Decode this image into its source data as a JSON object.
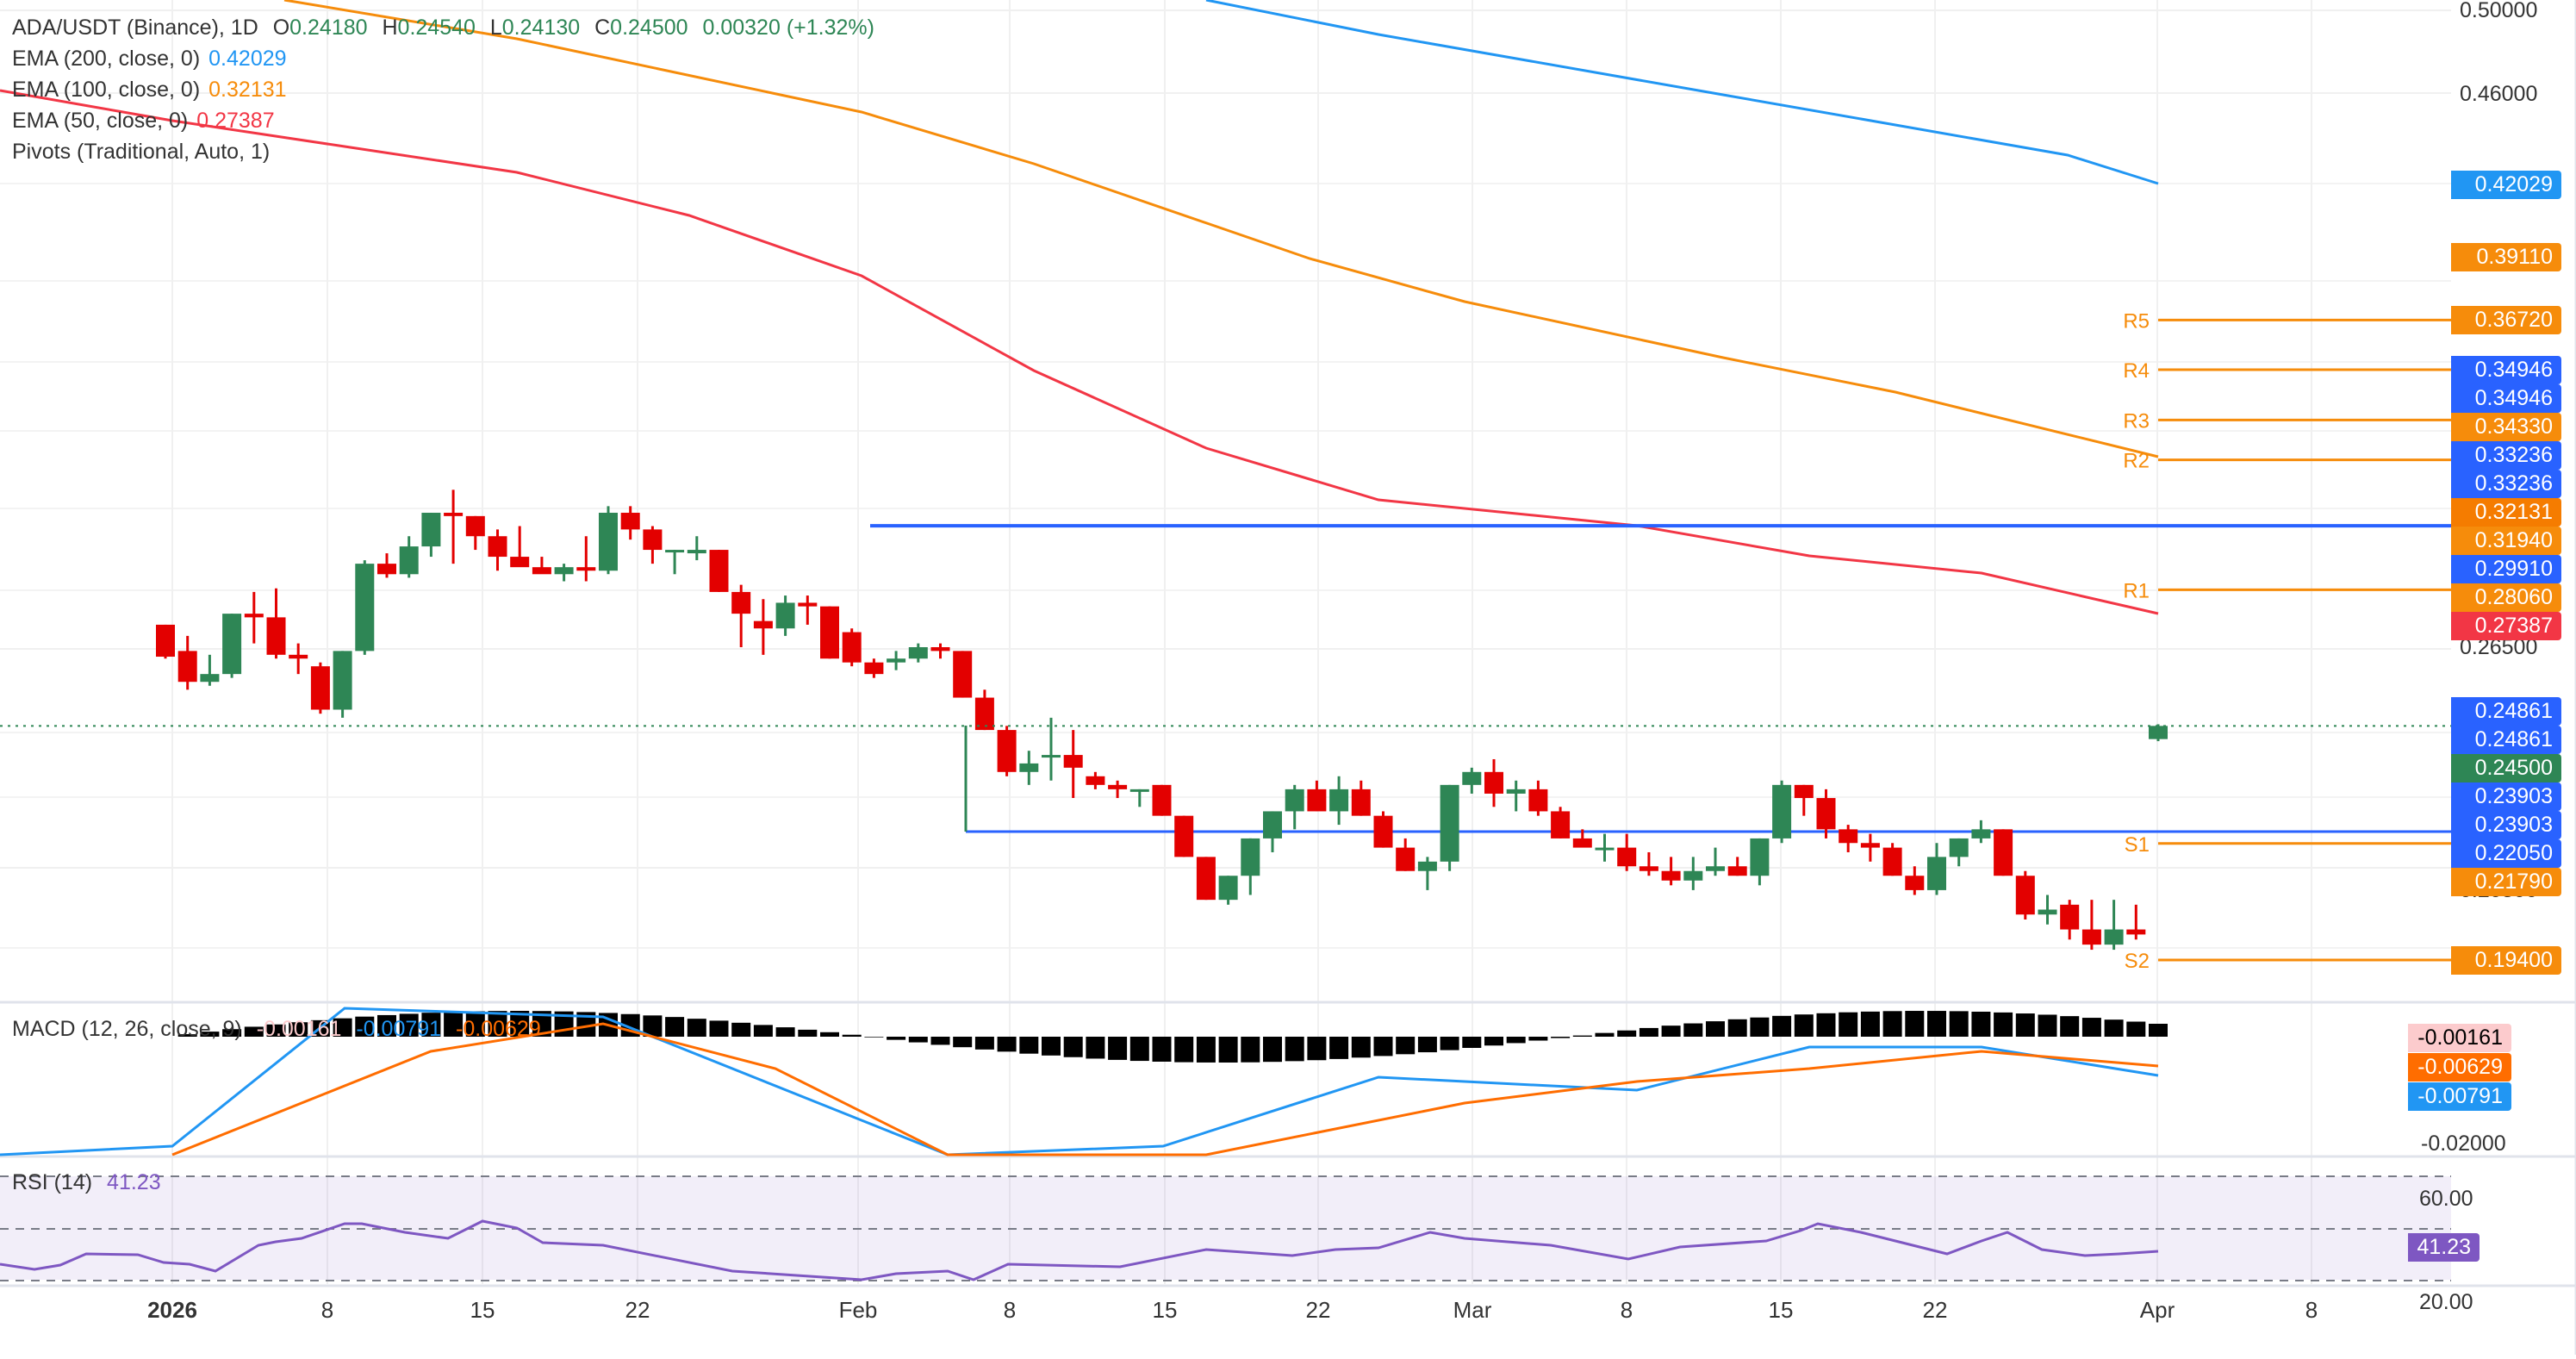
{
  "header": {
    "symbol": "ADA/USDT (Binance), 1D",
    "open_label": "O",
    "open": "0.24180",
    "high_label": "H",
    "high": "0.24540",
    "low_label": "L",
    "low": "0.24130",
    "close_label": "C",
    "close": "0.24500",
    "change": "0.00320 (+1.32%)"
  },
  "indicators": {
    "ema200": {
      "label": "EMA (200, close, 0)",
      "value": "0.42029",
      "color": "#2196f3"
    },
    "ema100": {
      "label": "EMA (100, close, 0)",
      "value": "0.32131",
      "color": "#f68c0b"
    },
    "ema50": {
      "label": "EMA (50, close, 0)",
      "value": "0.27387",
      "color": "#f23645"
    },
    "pivots": {
      "label": "Pivots (Traditional, Auto, 1)"
    }
  },
  "macd": {
    "label": "MACD (12, 26, close, 9)",
    "hist": "-0.00161",
    "macd": "-0.00791",
    "signal": "-0.00629"
  },
  "rsi": {
    "label": "RSI (14)",
    "value": "41.23"
  },
  "colors": {
    "up": "#2e8655",
    "down": "#e30000",
    "pivot": "#f68c0b",
    "level": "#2962ff",
    "ema200": "#2196f3",
    "ema100": "#f68c0b",
    "ema50": "#f23645",
    "macd": "#2196f3",
    "signal": "#ff6d00",
    "rsi": "#7e57c2"
  },
  "price_axis": {
    "ticks": [
      "0.50000",
      "0.46000",
      "0.26500",
      "0.20800"
    ],
    "badges": [
      {
        "value": "0.42029",
        "color": "#2196f3"
      },
      {
        "value": "0.39110",
        "color": "#f68c0b"
      },
      {
        "value": "0.36720",
        "color": "#f68c0b"
      },
      {
        "value": "0.34946",
        "color": "#2962ff"
      },
      {
        "value": "0.34946",
        "color": "#2962ff"
      },
      {
        "value": "0.34330",
        "color": "#f68c0b"
      },
      {
        "value": "0.33236",
        "color": "#2962ff"
      },
      {
        "value": "0.33236",
        "color": "#2962ff"
      },
      {
        "value": "0.32131",
        "color": "#f57c00"
      },
      {
        "value": "0.31940",
        "color": "#f68c0b"
      },
      {
        "value": "0.29910",
        "color": "#2962ff"
      },
      {
        "value": "0.28060",
        "color": "#f68c0b"
      },
      {
        "value": "0.27387",
        "color": "#f23645"
      },
      {
        "value": "0.24861",
        "color": "#2962ff"
      },
      {
        "value": "0.24861",
        "color": "#2962ff"
      },
      {
        "value": "0.24500",
        "color": "#2e8655"
      },
      {
        "value": "0.23903",
        "color": "#2962ff"
      },
      {
        "value": "0.23903",
        "color": "#2962ff"
      },
      {
        "value": "0.22050",
        "color": "#2962ff"
      },
      {
        "value": "0.21790",
        "color": "#f68c0b"
      },
      {
        "value": "0.19400",
        "color": "#f68c0b"
      }
    ]
  },
  "pivots": [
    {
      "name": "R5",
      "value": 0.3672
    },
    {
      "name": "R4",
      "value": 0.34946
    },
    {
      "name": "R3",
      "value": 0.33236
    },
    {
      "name": "R2",
      "value": 0.3194
    },
    {
      "name": "R1",
      "value": 0.2806
    },
    {
      "name": "S1",
      "value": 0.2179
    },
    {
      "name": "S2",
      "value": 0.194
    }
  ],
  "macd_axis": {
    "ticks": [
      "0.00000",
      "-0.02000"
    ],
    "badges": [
      {
        "value": "-0.00161",
        "color": "#fccbcd",
        "text": "#000"
      },
      {
        "value": "-0.00629",
        "color": "#ff6d00",
        "text": "#fff"
      },
      {
        "value": "-0.00791",
        "color": "#2196f3",
        "text": "#fff"
      }
    ]
  },
  "rsi_axis": {
    "ticks": [
      "60.00",
      "20.00"
    ],
    "badge": {
      "value": "41.23",
      "color": "#7e57c2"
    }
  },
  "x_axis": [
    {
      "label": "2026",
      "x": 200,
      "bold": true
    },
    {
      "label": "8",
      "x": 380
    },
    {
      "label": "15",
      "x": 560
    },
    {
      "label": "22",
      "x": 740
    },
    {
      "label": "Feb",
      "x": 996
    },
    {
      "label": "8",
      "x": 1172
    },
    {
      "label": "15",
      "x": 1352
    },
    {
      "label": "22",
      "x": 1530
    },
    {
      "label": "Mar",
      "x": 1709
    },
    {
      "label": "8",
      "x": 1888
    },
    {
      "label": "15",
      "x": 2067
    },
    {
      "label": "22",
      "x": 2246
    },
    {
      "label": "Apr",
      "x": 2504
    },
    {
      "label": "8",
      "x": 2683
    }
  ],
  "chart_data": {
    "type": "candlestick",
    "title": "ADA/USDT (Binance), 1D",
    "scale": "log",
    "ylim": [
      0.18,
      0.5
    ],
    "x_start": "2025-12-24",
    "x_end": "2026-04-01",
    "ohlc": [
      [
        0.271,
        0.271,
        0.262,
        0.2625
      ],
      [
        0.264,
        0.268,
        0.254,
        0.256
      ],
      [
        0.256,
        0.263,
        0.255,
        0.258
      ],
      [
        0.258,
        0.274,
        0.257,
        0.274
      ],
      [
        0.274,
        0.28,
        0.266,
        0.273
      ],
      [
        0.273,
        0.281,
        0.262,
        0.263
      ],
      [
        0.263,
        0.266,
        0.258,
        0.262
      ],
      [
        0.26,
        0.261,
        0.248,
        0.249
      ],
      [
        0.249,
        0.264,
        0.247,
        0.264
      ],
      [
        0.264,
        0.289,
        0.263,
        0.288
      ],
      [
        0.288,
        0.291,
        0.284,
        0.285
      ],
      [
        0.285,
        0.296,
        0.284,
        0.293
      ],
      [
        0.293,
        0.303,
        0.29,
        0.303
      ],
      [
        0.303,
        0.31,
        0.288,
        0.302
      ],
      [
        0.302,
        0.302,
        0.292,
        0.296
      ],
      [
        0.296,
        0.298,
        0.286,
        0.29
      ],
      [
        0.29,
        0.299,
        0.288,
        0.287
      ],
      [
        0.287,
        0.29,
        0.286,
        0.285
      ],
      [
        0.285,
        0.288,
        0.283,
        0.287
      ],
      [
        0.287,
        0.296,
        0.283,
        0.286
      ],
      [
        0.286,
        0.305,
        0.285,
        0.303
      ],
      [
        0.303,
        0.305,
        0.295,
        0.298
      ],
      [
        0.298,
        0.299,
        0.288,
        0.292
      ],
      [
        0.292,
        0.292,
        0.285,
        0.292
      ],
      [
        0.291,
        0.296,
        0.289,
        0.292
      ],
      [
        0.292,
        0.292,
        0.28,
        0.28
      ],
      [
        0.28,
        0.282,
        0.265,
        0.274
      ],
      [
        0.272,
        0.278,
        0.263,
        0.27
      ],
      [
        0.27,
        0.279,
        0.268,
        0.277
      ],
      [
        0.277,
        0.279,
        0.271,
        0.276
      ],
      [
        0.276,
        0.276,
        0.262,
        0.262
      ],
      [
        0.269,
        0.27,
        0.26,
        0.261
      ],
      [
        0.261,
        0.262,
        0.257,
        0.258
      ],
      [
        0.261,
        0.264,
        0.259,
        0.262
      ],
      [
        0.262,
        0.266,
        0.261,
        0.265
      ],
      [
        0.265,
        0.266,
        0.262,
        0.264
      ],
      [
        0.264,
        0.264,
        0.252,
        0.252
      ],
      [
        0.252,
        0.254,
        0.244,
        0.244
      ],
      [
        0.244,
        0.245,
        0.233,
        0.234
      ],
      [
        0.234,
        0.239,
        0.231,
        0.236
      ],
      [
        0.238,
        0.247,
        0.232,
        0.238
      ],
      [
        0.238,
        0.244,
        0.228,
        0.235
      ],
      [
        0.233,
        0.234,
        0.23,
        0.231
      ],
      [
        0.231,
        0.232,
        0.228,
        0.23
      ],
      [
        0.23,
        0.23,
        0.226,
        0.23
      ],
      [
        0.231,
        0.231,
        0.224,
        0.224
      ],
      [
        0.224,
        0.224,
        0.215,
        0.215
      ],
      [
        0.215,
        0.215,
        0.206,
        0.206
      ],
      [
        0.206,
        0.211,
        0.205,
        0.211
      ],
      [
        0.211,
        0.219,
        0.207,
        0.219
      ],
      [
        0.219,
        0.225,
        0.216,
        0.225
      ],
      [
        0.225,
        0.231,
        0.221,
        0.23
      ],
      [
        0.23,
        0.232,
        0.225,
        0.225
      ],
      [
        0.225,
        0.233,
        0.222,
        0.23
      ],
      [
        0.23,
        0.232,
        0.224,
        0.224
      ],
      [
        0.224,
        0.225,
        0.217,
        0.217
      ],
      [
        0.217,
        0.219,
        0.212,
        0.212
      ],
      [
        0.212,
        0.215,
        0.208,
        0.214
      ],
      [
        0.214,
        0.231,
        0.212,
        0.231
      ],
      [
        0.231,
        0.235,
        0.229,
        0.234
      ],
      [
        0.234,
        0.237,
        0.226,
        0.229
      ],
      [
        0.229,
        0.232,
        0.225,
        0.23
      ],
      [
        0.23,
        0.232,
        0.224,
        0.225
      ],
      [
        0.225,
        0.226,
        0.219,
        0.219
      ],
      [
        0.219,
        0.221,
        0.218,
        0.217
      ],
      [
        0.217,
        0.22,
        0.214,
        0.217
      ],
      [
        0.217,
        0.22,
        0.212,
        0.213
      ],
      [
        0.213,
        0.216,
        0.211,
        0.212
      ],
      [
        0.212,
        0.215,
        0.209,
        0.21
      ],
      [
        0.21,
        0.215,
        0.208,
        0.212
      ],
      [
        0.212,
        0.217,
        0.211,
        0.213
      ],
      [
        0.213,
        0.215,
        0.211,
        0.211
      ],
      [
        0.211,
        0.219,
        0.209,
        0.219
      ],
      [
        0.219,
        0.232,
        0.218,
        0.231
      ],
      [
        0.231,
        0.231,
        0.224,
        0.228
      ],
      [
        0.228,
        0.23,
        0.219,
        0.221
      ],
      [
        0.221,
        0.222,
        0.216,
        0.218
      ],
      [
        0.218,
        0.22,
        0.214,
        0.217
      ],
      [
        0.217,
        0.218,
        0.211,
        0.211
      ],
      [
        0.211,
        0.213,
        0.207,
        0.208
      ],
      [
        0.208,
        0.218,
        0.207,
        0.215
      ],
      [
        0.215,
        0.219,
        0.213,
        0.219
      ],
      [
        0.219,
        0.223,
        0.218,
        0.221
      ],
      [
        0.221,
        0.221,
        0.211,
        0.211
      ],
      [
        0.211,
        0.212,
        0.202,
        0.203
      ],
      [
        0.203,
        0.207,
        0.201,
        0.204
      ],
      [
        0.205,
        0.206,
        0.198,
        0.2
      ],
      [
        0.2,
        0.206,
        0.196,
        0.197
      ],
      [
        0.197,
        0.206,
        0.196,
        0.2
      ],
      [
        0.2,
        0.205,
        0.198,
        0.199
      ],
      [
        0.2418,
        0.2454,
        0.2413,
        0.245
      ]
    ],
    "series_note": "EMA 200/100/50, Pivot levels, MACD(12,26,9), RSI(14)"
  }
}
